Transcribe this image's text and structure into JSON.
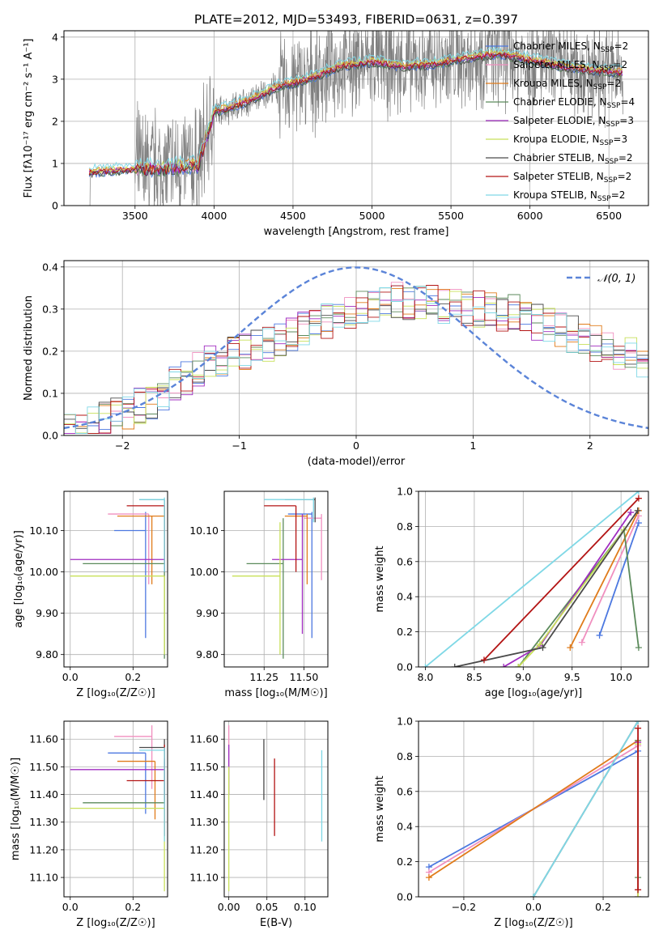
{
  "title": "PLATE=2012, MJD=53493, FIBERID=0631, z=0.397",
  "colors": {
    "Chabrier MILES": "#4c78e0",
    "Salpeter MILES": "#f08fbf",
    "Kroupa MILES": "#e07b1a",
    "Chabrier ELODIE": "#5b8a5b",
    "Salpeter ELODIE": "#a02cc0",
    "Kroupa ELODIE": "#c8e05a",
    "Chabrier STELIB": "#4a4a4a",
    "Salpeter STELIB": "#b31414",
    "Kroupa STELIB": "#7fd8e6",
    "data": "#808080",
    "normal": "#5b84d8"
  },
  "chart_data": [
    {
      "id": "spectrum",
      "type": "line",
      "xlabel": "wavelength [Angstrom, rest frame]",
      "ylabel": "Flux [f$_\\lambda$10$^{-17}$ erg cm$^{-2}$ s$^{-1}$ A$^{-1}$]",
      "ylabel_display": "Flux [fλ10⁻¹⁷ erg cm⁻² s⁻¹ A⁻¹]",
      "xlim": [
        3050,
        6750
      ],
      "ylim": [
        0,
        4.15
      ],
      "xticks": [
        3500,
        4000,
        4500,
        5000,
        5500,
        6000,
        6500
      ],
      "yticks": [
        0,
        1,
        2,
        3,
        4
      ],
      "legend_position": "right",
      "series": [
        {
          "name": "Chabrier MILES, N$_{SSP}$=2",
          "label": "Chabrier MILES, N",
          "sub": "SSP",
          "n": "=2"
        },
        {
          "name": "Salpeter MILES, N$_{SSP}$=2",
          "label": "Salpeter MILES, N",
          "sub": "SSP",
          "n": "=2"
        },
        {
          "name": "Kroupa MILES, N$_{SSP}$=2",
          "label": "Kroupa MILES, N",
          "sub": "SSP",
          "n": "=2"
        },
        {
          "name": "Chabrier ELODIE, N$_{SSP}$=4",
          "label": "Chabrier ELODIE, N",
          "sub": "SSP",
          "n": "=4"
        },
        {
          "name": "Salpeter ELODIE, N$_{SSP}$=3",
          "label": "Salpeter ELODIE, N",
          "sub": "SSP",
          "n": "=3"
        },
        {
          "name": "Kroupa ELODIE, N$_{SSP}$=3",
          "label": "Kroupa ELODIE, N",
          "sub": "SSP",
          "n": "=3"
        },
        {
          "name": "Chabrier STELIB, N$_{SSP}$=2",
          "label": "Chabrier STELIB, N",
          "sub": "SSP",
          "n": "=2"
        },
        {
          "name": "Salpeter STELIB, N$_{SSP}$=2",
          "label": "Salpeter STELIB, N",
          "sub": "SSP",
          "n": "=2"
        },
        {
          "name": "Kroupa STELIB, N$_{SSP}$=2",
          "label": "Kroupa STELIB, N",
          "sub": "SSP",
          "n": "=2"
        }
      ],
      "data_range": [
        3210,
        6590
      ],
      "model_continuum": [
        [
          3210,
          0.78
        ],
        [
          3500,
          0.86
        ],
        [
          3700,
          0.88
        ],
        [
          3900,
          0.95
        ],
        [
          4000,
          2.2
        ],
        [
          4200,
          2.45
        ],
        [
          4400,
          2.8
        ],
        [
          4600,
          3.0
        ],
        [
          4800,
          3.3
        ],
        [
          5000,
          3.4
        ],
        [
          5200,
          3.3
        ],
        [
          5400,
          3.35
        ],
        [
          5600,
          3.5
        ],
        [
          5800,
          3.6
        ],
        [
          6000,
          3.45
        ],
        [
          6200,
          3.3
        ],
        [
          6400,
          3.2
        ],
        [
          6590,
          3.15
        ]
      ]
    },
    {
      "id": "residuals",
      "type": "histogram",
      "xlabel": "(data-model)/error",
      "ylabel": "Normed distribution",
      "xlim": [
        -2.5,
        2.5
      ],
      "ylim": [
        0,
        0.415
      ],
      "xticks": [
        -2,
        -1,
        0,
        1,
        2
      ],
      "yticks": [
        0.0,
        0.1,
        0.2,
        0.3,
        0.4
      ],
      "legend": "$\\mathcal{N}(0,1)$",
      "legend_display": "𝒩(0, 1)",
      "legend_position": "top-right",
      "bin_width": 0.1,
      "envelope": [
        0.02,
        0.02,
        0.03,
        0.04,
        0.05,
        0.06,
        0.07,
        0.08,
        0.1,
        0.12,
        0.14,
        0.16,
        0.17,
        0.18,
        0.19,
        0.2,
        0.21,
        0.22,
        0.23,
        0.24,
        0.25,
        0.26,
        0.27,
        0.28,
        0.29,
        0.3,
        0.31,
        0.31,
        0.32,
        0.32,
        0.32,
        0.32,
        0.31,
        0.31,
        0.3,
        0.3,
        0.3,
        0.29,
        0.29,
        0.28,
        0.27,
        0.26,
        0.25,
        0.24,
        0.23,
        0.22,
        0.21,
        0.2,
        0.19,
        0.18,
        0.17,
        0.16,
        0.15,
        0.14,
        0.13,
        0.12,
        0.11,
        0.1,
        0.09,
        0.08
      ]
    },
    {
      "id": "age-vs-Z",
      "type": "scatter",
      "xlabel": "Z [log$_{10}$($Z/Z_\\odot$)]",
      "xlabel_display": "Z [log₁₀(Z/Z☉)]",
      "ylabel": "age  [log$_{10}$($age/yr$)]",
      "ylabel_display": "age  [log₁₀(age/yr)]",
      "xlim": [
        -0.02,
        0.31
      ],
      "ylim": [
        9.77,
        10.195
      ],
      "xticks": [
        0.0,
        0.2
      ],
      "yticks": [
        9.8,
        9.9,
        10.0,
        10.1
      ],
      "points": [
        {
          "series": "Chabrier MILES",
          "x": 0.24,
          "y": 10.1,
          "xerr": [
            0.14,
            0.24
          ],
          "yerr": [
            9.84,
            10.145
          ]
        },
        {
          "series": "Salpeter MILES",
          "x": 0.25,
          "y": 10.14,
          "xerr": [
            0.12,
            0.25
          ],
          "yerr": [
            9.97,
            10.14
          ]
        },
        {
          "series": "Kroupa MILES",
          "x": 0.26,
          "y": 10.135,
          "xerr": [
            0.15,
            0.3
          ],
          "yerr": [
            9.97,
            10.135
          ]
        },
        {
          "series": "Chabrier ELODIE",
          "x": 0.3,
          "y": 10.02,
          "xerr": [
            0.04,
            0.3
          ],
          "yerr": [
            9.79,
            10.02
          ]
        },
        {
          "series": "Salpeter ELODIE",
          "x": 0.3,
          "y": 10.03,
          "xerr": [
            0.0,
            0.3
          ],
          "yerr": [
            10.0,
            10.03
          ]
        },
        {
          "series": "Kroupa ELODIE",
          "x": 0.3,
          "y": 9.99,
          "xerr": [
            0.0,
            0.3
          ],
          "yerr": [
            9.8,
            9.99
          ]
        },
        {
          "series": "Chabrier STELIB",
          "x": 0.3,
          "y": 10.175,
          "xerr": [
            0.22,
            0.3
          ],
          "yerr": [
            10.0,
            10.175
          ]
        },
        {
          "series": "Salpeter STELIB",
          "x": 0.3,
          "y": 10.16,
          "xerr": [
            0.18,
            0.3
          ],
          "yerr": [
            10.02,
            10.16
          ]
        },
        {
          "series": "Kroupa STELIB",
          "x": 0.3,
          "y": 10.175,
          "xerr": [
            0.22,
            0.3
          ],
          "yerr": [
            10.0,
            10.18
          ]
        }
      ]
    },
    {
      "id": "age-vs-mass",
      "type": "scatter",
      "xlabel": "mass [log$_{10}$($M/M_\\odot$)]",
      "xlabel_display": "mass [log₁₀(M/M☉)]",
      "xlim": [
        11.0,
        11.65
      ],
      "ylim": [
        9.77,
        10.195
      ],
      "xticks": [
        11.25,
        11.5
      ],
      "yticks": [
        9.8,
        9.9,
        10.0,
        10.1
      ],
      "points": [
        {
          "series": "Chabrier MILES",
          "x": 11.55,
          "y": 10.14,
          "xerr": [
            11.4,
            11.55
          ],
          "yerr": [
            9.84,
            10.145
          ]
        },
        {
          "series": "Salpeter MILES",
          "x": 11.61,
          "y": 10.13,
          "xerr": [
            11.5,
            11.61
          ],
          "yerr": [
            9.98,
            10.14
          ]
        },
        {
          "series": "Kroupa MILES",
          "x": 11.52,
          "y": 10.135,
          "xerr": [
            11.38,
            11.52
          ],
          "yerr": [
            9.97,
            10.14
          ]
        },
        {
          "series": "Chabrier ELODIE",
          "x": 11.37,
          "y": 10.02,
          "xerr": [
            11.14,
            11.37
          ],
          "yerr": [
            9.79,
            10.13
          ]
        },
        {
          "series": "Salpeter ELODIE",
          "x": 11.49,
          "y": 10.03,
          "xerr": [
            11.3,
            11.49
          ],
          "yerr": [
            9.85,
            10.14
          ]
        },
        {
          "series": "Kroupa ELODIE",
          "x": 11.35,
          "y": 9.99,
          "xerr": [
            11.05,
            11.35
          ],
          "yerr": [
            9.8,
            10.12
          ]
        },
        {
          "series": "Chabrier STELIB",
          "x": 11.57,
          "y": 10.175,
          "xerr": [
            11.38,
            11.57
          ],
          "yerr": [
            10.12,
            10.18
          ]
        },
        {
          "series": "Salpeter STELIB",
          "x": 11.45,
          "y": 10.16,
          "xerr": [
            11.25,
            11.45
          ],
          "yerr": [
            10.0,
            10.16
          ]
        },
        {
          "series": "Kroupa STELIB",
          "x": 11.56,
          "y": 10.175,
          "xerr": [
            11.25,
            11.56
          ],
          "yerr": [
            10.12,
            10.18
          ]
        }
      ]
    },
    {
      "id": "massweight-vs-age",
      "type": "line",
      "xlabel": "age  [log$_{10}$($age/yr$)]",
      "xlabel_display": "age  [log₁₀(age/yr)]",
      "ylabel": "mass weight",
      "xlim": [
        7.93,
        10.28
      ],
      "ylim": [
        0,
        1
      ],
      "xticks": [
        8.0,
        8.5,
        9.0,
        9.5,
        10.0
      ],
      "yticks": [
        0.0,
        0.2,
        0.4,
        0.6,
        0.8,
        1.0
      ],
      "series": [
        {
          "name": "Chabrier MILES",
          "x": [
            9.78,
            10.18
          ],
          "y": [
            0.18,
            0.82
          ]
        },
        {
          "name": "Salpeter MILES",
          "x": [
            9.6,
            10.18
          ],
          "y": [
            0.14,
            0.86
          ]
        },
        {
          "name": "Kroupa MILES",
          "x": [
            9.48,
            10.18
          ],
          "y": [
            0.11,
            0.89
          ]
        },
        {
          "name": "Chabrier ELODIE",
          "x": [
            8.95,
            10.03,
            10.18
          ],
          "y": [
            0.0,
            0.78,
            0.11
          ]
        },
        {
          "name": "Salpeter ELODIE",
          "x": [
            8.8,
            9.17,
            10.1
          ],
          "y": [
            0.0,
            0.12,
            0.88
          ]
        },
        {
          "name": "Kroupa ELODIE",
          "x": [
            8.95,
            9.17,
            10.03
          ],
          "y": [
            0.0,
            0.13,
            0.78
          ]
        },
        {
          "name": "Chabrier STELIB",
          "x": [
            8.3,
            9.2,
            10.17
          ],
          "y": [
            0.0,
            0.11,
            0.89
          ]
        },
        {
          "name": "Salpeter STELIB",
          "x": [
            8.6,
            10.18
          ],
          "y": [
            0.04,
            0.96
          ]
        },
        {
          "name": "Kroupa STELIB",
          "x": [
            8.0,
            10.18
          ],
          "y": [
            0.0,
            1.0
          ]
        }
      ]
    },
    {
      "id": "mass-vs-Z",
      "type": "scatter",
      "xlabel": "Z [log$_{10}$($Z/Z_\\odot$)]",
      "xlabel_display": "Z [log₁₀(Z/Z☉)]",
      "ylabel": "mass [log$_{10}$($M/M_\\odot$)]",
      "ylabel_display": "mass [log₁₀(M/M☉)]",
      "xlim": [
        -0.02,
        0.31
      ],
      "ylim": [
        11.03,
        11.665
      ],
      "xticks": [
        0.0,
        0.2
      ],
      "yticks": [
        11.1,
        11.2,
        11.3,
        11.4,
        11.5,
        11.6
      ],
      "points": [
        {
          "series": "Chabrier MILES",
          "x": 0.24,
          "y": 11.55,
          "xerr": [
            0.12,
            0.24
          ],
          "yerr": [
            11.33,
            11.55
          ]
        },
        {
          "series": "Salpeter MILES",
          "x": 0.26,
          "y": 11.61,
          "xerr": [
            0.14,
            0.26
          ],
          "yerr": [
            11.42,
            11.65
          ]
        },
        {
          "series": "Kroupa MILES",
          "x": 0.27,
          "y": 11.52,
          "xerr": [
            0.15,
            0.27
          ],
          "yerr": [
            11.31,
            11.52
          ]
        },
        {
          "series": "Chabrier ELODIE",
          "x": 0.3,
          "y": 11.37,
          "xerr": [
            0.04,
            0.3
          ],
          "yerr": [
            11.37,
            11.52
          ]
        },
        {
          "series": "Salpeter ELODIE",
          "x": 0.3,
          "y": 11.49,
          "xerr": [
            0.0,
            0.3
          ],
          "yerr": [
            11.4,
            11.53
          ]
        },
        {
          "series": "Kroupa ELODIE",
          "x": 0.3,
          "y": 11.35,
          "xerr": [
            0.0,
            0.3
          ],
          "yerr": [
            11.05,
            11.35
          ]
        },
        {
          "series": "Chabrier STELIB",
          "x": 0.3,
          "y": 11.57,
          "xerr": [
            0.22,
            0.3
          ],
          "yerr": [
            11.38,
            11.6
          ]
        },
        {
          "series": "Salpeter STELIB",
          "x": 0.3,
          "y": 11.45,
          "xerr": [
            0.18,
            0.3
          ],
          "yerr": [
            11.25,
            11.58
          ]
        },
        {
          "series": "Kroupa STELIB",
          "x": 0.3,
          "y": 11.56,
          "xerr": [
            0.22,
            0.3
          ],
          "yerr": [
            11.23,
            11.57
          ]
        }
      ]
    },
    {
      "id": "mass-vs-ebv",
      "type": "scatter",
      "xlabel": "E(B-V)",
      "xlim": [
        -0.006,
        0.13
      ],
      "ylim": [
        11.03,
        11.665
      ],
      "xticks": [
        0.0,
        0.05,
        0.1
      ],
      "yticks": [
        11.1,
        11.2,
        11.3,
        11.4,
        11.5,
        11.6
      ],
      "points": [
        {
          "series": "Salpeter MILES",
          "x": 0.0,
          "y": 11.61,
          "yerr": [
            11.4,
            11.65
          ]
        },
        {
          "series": "Salpeter ELODIE",
          "x": 0.0,
          "y": 11.49,
          "yerr": [
            11.4,
            11.58
          ]
        },
        {
          "series": "Kroupa ELODIE",
          "x": 0.0,
          "y": 11.35,
          "yerr": [
            11.05,
            11.5
          ]
        },
        {
          "series": "Chabrier STELIB",
          "x": 0.046,
          "y": 11.57,
          "yerr": [
            11.38,
            11.6
          ]
        },
        {
          "series": "Salpeter STELIB",
          "x": 0.06,
          "y": 11.45,
          "yerr": [
            11.25,
            11.53
          ]
        },
        {
          "series": "Kroupa STELIB",
          "x": 0.122,
          "y": 11.56,
          "yerr": [
            11.23,
            11.56
          ]
        }
      ]
    },
    {
      "id": "massweight-vs-Z",
      "type": "line",
      "xlabel": "Z [log$_{10}$($Z/Z_\\odot$)]",
      "xlabel_display": "Z [log₁₀(Z/Z☉)]",
      "ylabel": "mass weight",
      "xlim": [
        -0.33,
        0.33
      ],
      "ylim": [
        0,
        1
      ],
      "xticks": [
        -0.2,
        0.0,
        0.2
      ],
      "yticks": [
        0.0,
        0.2,
        0.4,
        0.6,
        0.8,
        1.0
      ],
      "series": [
        {
          "name": "Chabrier MILES",
          "x": [
            -0.3,
            0.3
          ],
          "y": [
            0.17,
            0.83
          ]
        },
        {
          "name": "Salpeter MILES",
          "x": [
            -0.3,
            0.3
          ],
          "y": [
            0.14,
            0.86
          ]
        },
        {
          "name": "Kroupa MILES",
          "x": [
            -0.3,
            0.3
          ],
          "y": [
            0.11,
            0.89
          ]
        },
        {
          "name": "Chabrier ELODIE",
          "x": [
            0.3,
            0.3
          ],
          "y": [
            0.11,
            0.89
          ]
        },
        {
          "name": "Salpeter ELODIE",
          "x": [
            0.3,
            0.3
          ],
          "y": [
            0.0,
            0.88
          ]
        },
        {
          "name": "Kroupa ELODIE",
          "x": [
            0.3,
            0.3
          ],
          "y": [
            0.0,
            0.87
          ]
        },
        {
          "name": "Chabrier STELIB",
          "x": [
            0.0,
            0.3
          ],
          "y": [
            0.0,
            1.0
          ]
        },
        {
          "name": "Salpeter STELIB",
          "x": [
            0.3,
            0.3
          ],
          "y": [
            0.04,
            0.96
          ]
        },
        {
          "name": "Kroupa STELIB",
          "x": [
            0.0,
            0.3
          ],
          "y": [
            0.0,
            1.0
          ]
        }
      ]
    }
  ]
}
